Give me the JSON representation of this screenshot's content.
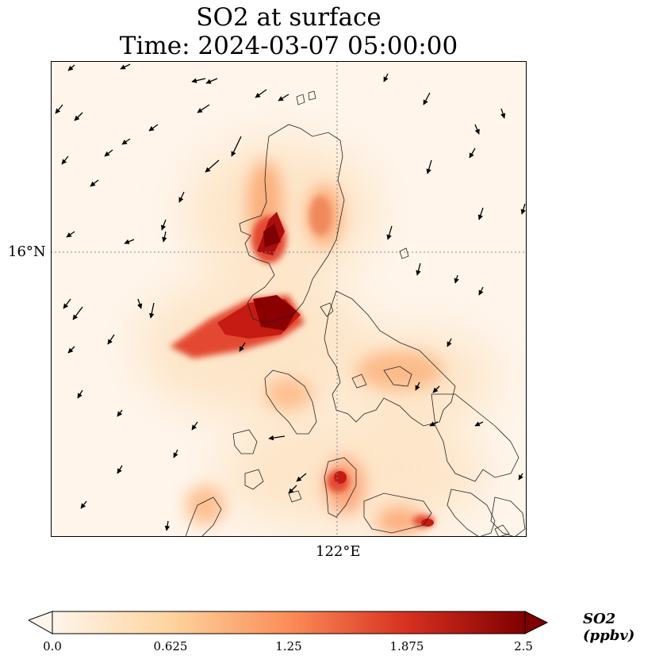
{
  "title_line1": "SO2 at surface",
  "title_line2": "Time: 2024-03-07 05:00:00",
  "lat_label": "16°N",
  "lon_label": "122°E",
  "colorbar": {
    "label": "SO2 (ppbv)",
    "ticks": [
      "0.0",
      "0.625",
      "1.25",
      "1.875",
      "2.5"
    ],
    "min": 0.0,
    "max": 2.5,
    "colors": [
      "#fff5eb",
      "#fdd49e",
      "#fc8d59",
      "#d7301f",
      "#7f0000"
    ]
  },
  "map": {
    "background": "#fff5eb",
    "gridline_color": "#888888",
    "coastline_color": "#222222"
  }
}
